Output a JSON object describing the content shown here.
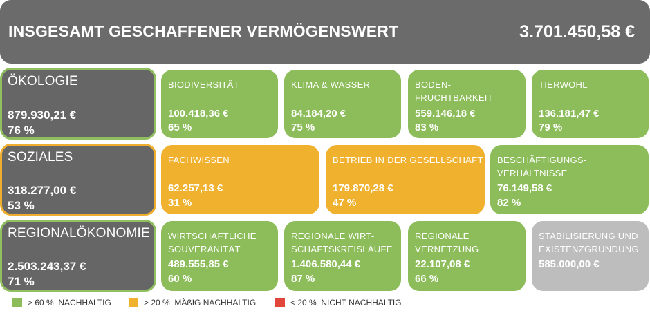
{
  "header": {
    "title": "INSGESAMT GESCHAFFENER VERMÖGENSWERT",
    "amount": "3.701.450,58 €"
  },
  "rows": [
    {
      "category": {
        "name": "ÖKOLOGIE",
        "amount": "879.930,21 €",
        "percent": "76 %",
        "border_color": "#8fbf5f"
      },
      "tiles": [
        {
          "name": "BIODIVERSITÄT",
          "amount": "100.418,36 €",
          "percent": "65 %",
          "status": "green"
        },
        {
          "name": "KLIMA & WASSER",
          "amount": "84.184,20 €",
          "percent": "75 %",
          "status": "green"
        },
        {
          "name": "BODEN-\nFRUCHTBARKEIT",
          "amount": "559.146,18 €",
          "percent": "83 %",
          "status": "green"
        },
        {
          "name": "TIERWOHL",
          "amount": "136.181,47 €",
          "percent": "79 %",
          "status": "green"
        }
      ]
    },
    {
      "category": {
        "name": "SOZIALES",
        "amount": "318.277,00 €",
        "percent": "53 %",
        "border_color": "#f0ae2e"
      },
      "tiles": [
        {
          "name": "FACHWISSEN",
          "amount": "62.257,13 €",
          "percent": "31 %",
          "status": "yellow"
        },
        {
          "name": "BETRIEB IN DER GESELLSCHAFT",
          "amount": "179.870,28 €",
          "percent": "47 %",
          "status": "yellow"
        },
        {
          "name": "BESCHÄFTIGUNGS-\nVERHÄLTNISSE",
          "amount": "76.149,58 €",
          "percent": "82 %",
          "status": "green"
        }
      ]
    },
    {
      "category": {
        "name": "REGIONALÖKONOMIE",
        "amount": "2.503.243,37 €",
        "percent": "71 %",
        "border_color": "#8fbf5f"
      },
      "tiles": [
        {
          "name": "WIRTSCHAFTLICHE\nSOUVERÄNITÄT",
          "amount": "489.555,85 €",
          "percent": "60 %",
          "status": "green"
        },
        {
          "name": "REGIONALE WIRT-\nSCHAFTSKREISLÄUFE",
          "amount": "1.406.580,44 €",
          "percent": "87 %",
          "status": "green"
        },
        {
          "name": "REGIONALE\nVERNETZUNG",
          "amount": "22.107,08 €",
          "percent": "66 %",
          "status": "green"
        },
        {
          "name": "STABILISIERUNG UND\nEXISTENZGRÜNDUNG",
          "amount": "585.000,00 €",
          "percent": "",
          "status": "grey"
        }
      ]
    }
  ],
  "legend": [
    {
      "label": "> 60 %  NACHHALTIG",
      "color": "#8cbd5a"
    },
    {
      "label": "> 20 %  MÄßIG NACHHALTIG",
      "color": "#f0b12f"
    },
    {
      "label": "< 20 %  NICHT NACHHALTIG",
      "color": "#e2463b"
    }
  ]
}
